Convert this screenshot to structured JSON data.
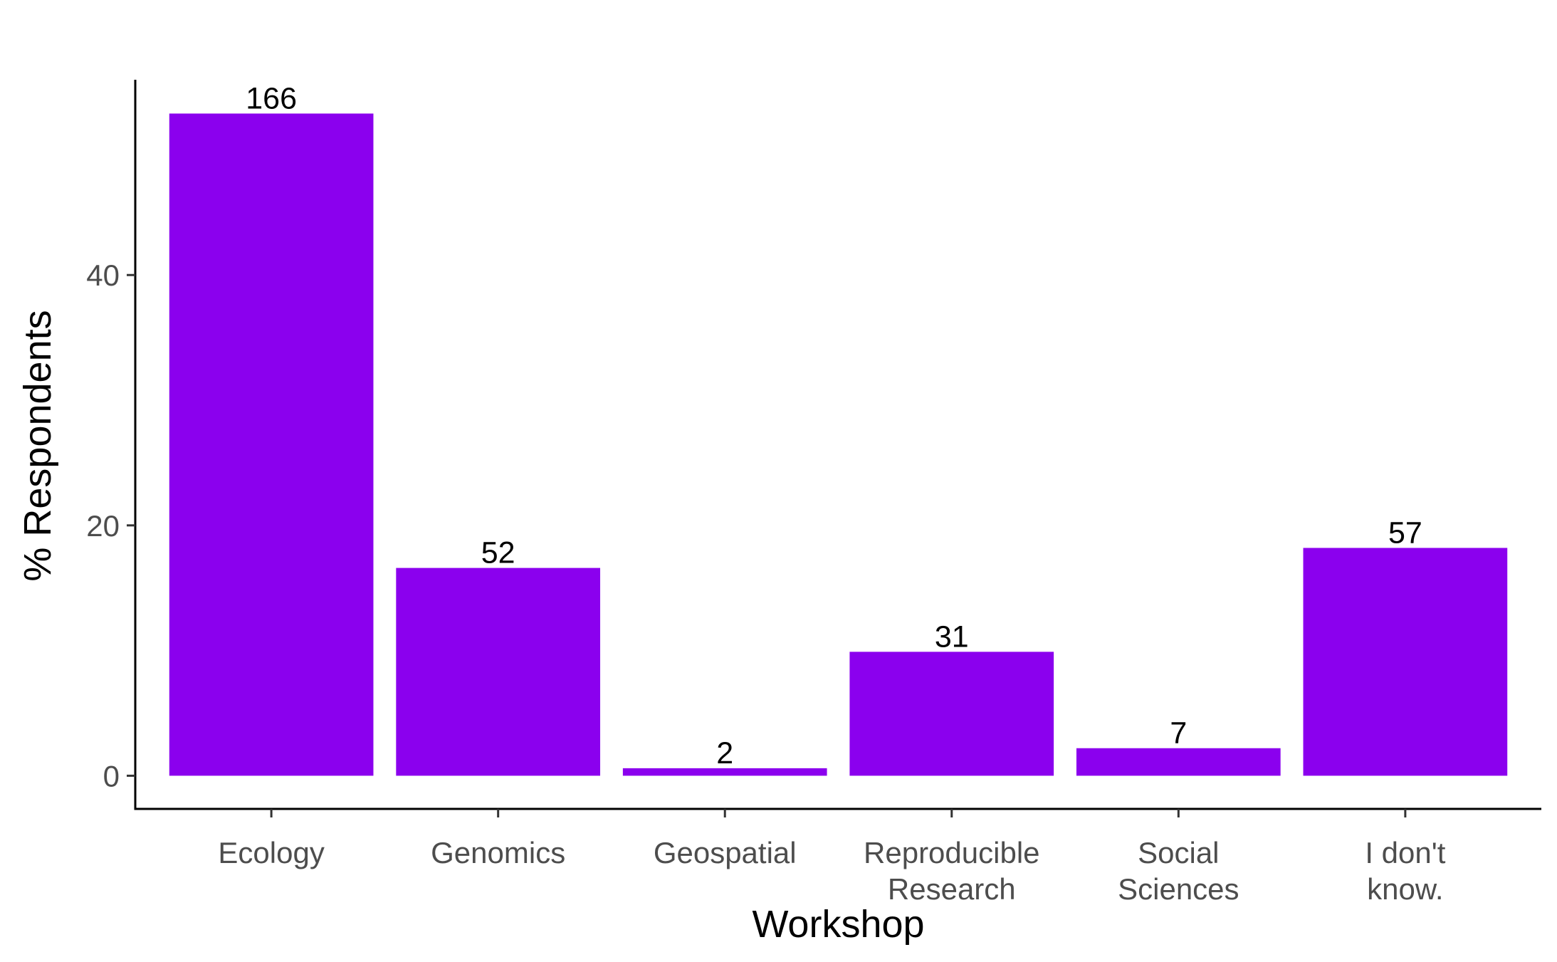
{
  "chart_data": {
    "type": "bar",
    "xlabel": "Workshop",
    "ylabel": "% Respondents",
    "categories": [
      [
        "Ecology"
      ],
      [
        "Genomics"
      ],
      [
        "Geospatial"
      ],
      [
        "Reproducible",
        "Research"
      ],
      [
        "Social",
        "Sciences"
      ],
      [
        "I don't",
        "know."
      ]
    ],
    "values": [
      52.9,
      16.6,
      0.6,
      9.9,
      2.2,
      18.2
    ],
    "data_labels": [
      "166",
      "52",
      "2",
      "31",
      "7",
      "57"
    ],
    "y_ticks": [
      {
        "value": 0,
        "label": "0"
      },
      {
        "value": 20,
        "label": "20"
      },
      {
        "value": 40,
        "label": "40"
      }
    ],
    "ylim": [
      -2.65,
      55.6
    ],
    "grid": false,
    "legend": "none",
    "bar_color": "#8B00EE"
  }
}
